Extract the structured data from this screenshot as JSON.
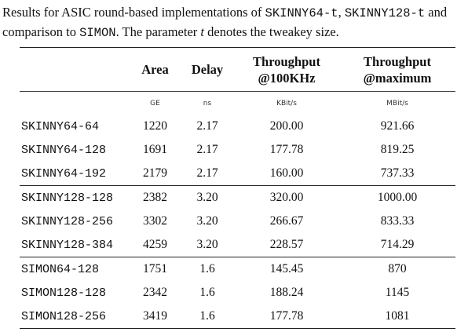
{
  "caption": [
    {
      "text": "Results for ASIC round-based implementations of ",
      "style": "roman"
    },
    {
      "text": "SKINNY64-t",
      "style": "mono"
    },
    {
      "text": ", ",
      "style": "roman"
    },
    {
      "text": "SKINNY128-t",
      "style": "mono"
    },
    {
      "text": " and comparison to ",
      "style": "roman"
    },
    {
      "text": "SIMON",
      "style": "mono"
    },
    {
      "text": ". The parameter ",
      "style": "roman"
    },
    {
      "text": "t",
      "style": "italic"
    },
    {
      "text": " denotes the tweakey size.",
      "style": "roman"
    }
  ],
  "table": {
    "columns": [
      {
        "title": [
          "Area"
        ],
        "unit": "GE"
      },
      {
        "title": [
          "Delay"
        ],
        "unit": "ns"
      },
      {
        "title": [
          "Throughput",
          "@100KHz"
        ],
        "unit": "KBit/s"
      },
      {
        "title": [
          "Throughput",
          "@maximum"
        ],
        "unit": "MBit/s"
      }
    ],
    "groups": [
      [
        [
          "SKINNY64-64",
          "1220",
          "2.17",
          "200.00",
          "921.66"
        ],
        [
          "SKINNY64-128",
          "1691",
          "2.17",
          "177.78",
          "819.25"
        ],
        [
          "SKINNY64-192",
          "2179",
          "2.17",
          "160.00",
          "737.33"
        ]
      ],
      [
        [
          "SKINNY128-128",
          "2382",
          "3.20",
          "320.00",
          "1000.00"
        ],
        [
          "SKINNY128-256",
          "3302",
          "3.20",
          "266.67",
          "833.33"
        ],
        [
          "SKINNY128-384",
          "4259",
          "3.20",
          "228.57",
          "714.29"
        ]
      ],
      [
        [
          "SIMON64-128",
          "1751",
          "1.6",
          "145.45",
          "870"
        ],
        [
          "SIMON128-128",
          "2342",
          "1.6",
          "188.24",
          "1145"
        ],
        [
          "SIMON128-256",
          "3419",
          "1.6",
          "177.78",
          "1081"
        ]
      ]
    ]
  }
}
